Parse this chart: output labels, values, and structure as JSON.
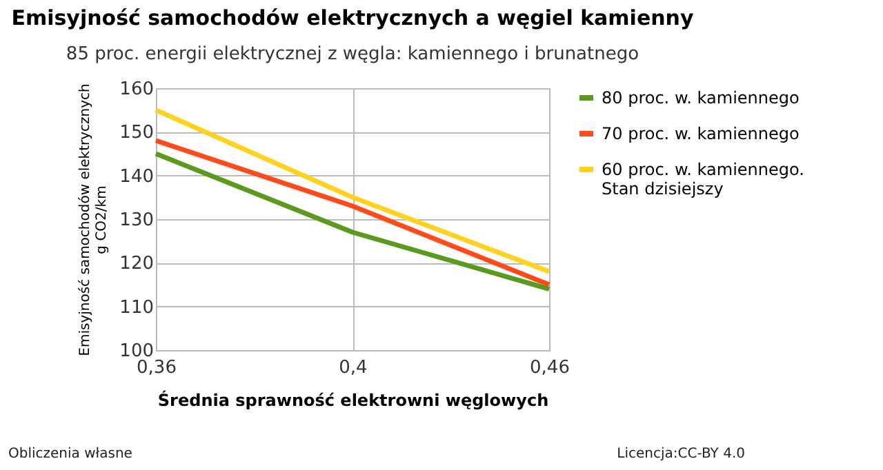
{
  "chart_data": {
    "type": "line",
    "title": "Emisyjność samochodów elektrycznych a węgiel kamienny",
    "subtitle": "85 proc. energii elektrycznej z węgla: kamiennego i brunatnego",
    "xlabel": "Średnia sprawność elektrowni węglowych",
    "ylabel": "Emisyjność samochodów elektrycznych g CO2/km",
    "categories": [
      "0,36",
      "0,4",
      "0,46"
    ],
    "series": [
      {
        "name": "80 proc. w. kamiennego",
        "color": "#5a9a1f",
        "values": [
          145,
          127,
          114
        ]
      },
      {
        "name": "70 proc. w. kamiennego",
        "color": "#ff4b1a",
        "values": [
          148,
          133,
          115
        ]
      },
      {
        "name": "60 proc. w. kamiennego. Stan dzisiejszy",
        "color": "#ffd21f",
        "values": [
          155,
          135,
          118
        ]
      }
    ],
    "ylim": [
      100,
      160
    ],
    "yticks": [
      100,
      110,
      120,
      130,
      140,
      150,
      160
    ],
    "grid": true,
    "legend": "right",
    "marker": "none",
    "line_style": "solid",
    "annotations": [
      "Obliczenia własne",
      "Licencja:CC-BY 4.0"
    ]
  }
}
